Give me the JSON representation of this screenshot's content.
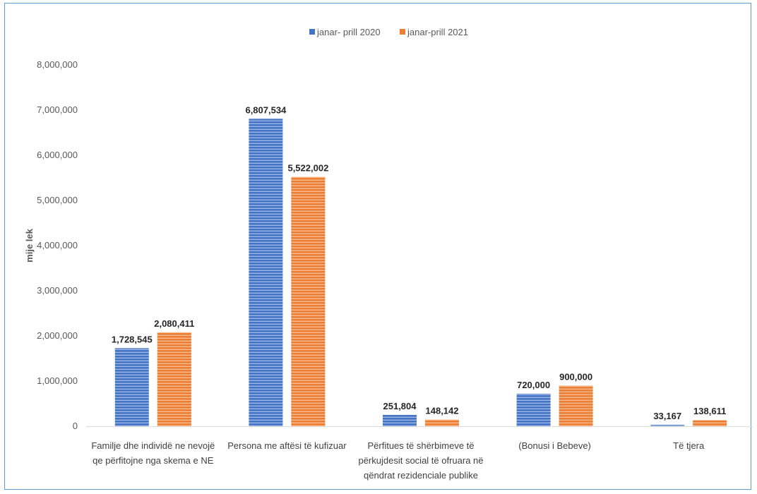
{
  "chart_data": {
    "type": "bar",
    "title": "",
    "xlabel": "",
    "ylabel": "mije lek",
    "ylim": [
      0,
      8000000
    ],
    "yticks": [
      "0",
      "1,000,000",
      "2,000,000",
      "3,000,000",
      "4,000,000",
      "5,000,000",
      "6,000,000",
      "7,000,000",
      "8,000,000"
    ],
    "grid": false,
    "legend_position": "top-center",
    "categories": [
      [
        "Familje dhe individë ne nevojë",
        "qe përfitojne nga skema e NE"
      ],
      [
        "Persona me aftësi të kufizuar"
      ],
      [
        "Përfitues të shërbimeve të",
        "përkujdesit social të ofruara në",
        "qëndrat rezidenciale publike"
      ],
      [
        "(Bonusi i Bebeve)"
      ],
      [
        "Të tjera"
      ]
    ],
    "series": [
      {
        "name": "janar- prill 2020",
        "color": "#4472c4",
        "values": [
          1728545,
          6807534,
          251804,
          720000,
          33167
        ],
        "labels": [
          "1,728,545",
          "6,807,534",
          "251,804",
          "720,000",
          "33,167"
        ]
      },
      {
        "name": "janar-prill 2021",
        "color": "#ed7d31",
        "values": [
          2080411,
          5522002,
          148142,
          900000,
          138611
        ],
        "labels": [
          "2,080,411",
          "5,522,002",
          "148,142",
          "900,000",
          "138,611"
        ]
      }
    ]
  }
}
